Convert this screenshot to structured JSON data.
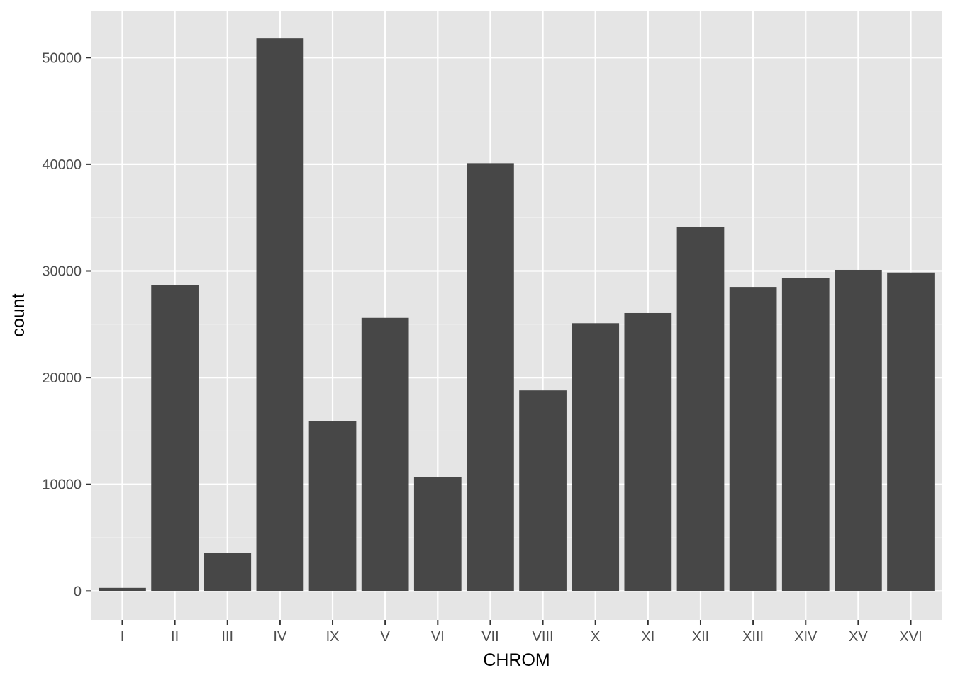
{
  "chart_data": {
    "type": "bar",
    "title": "",
    "xlabel": "CHROM",
    "ylabel": "count",
    "categories": [
      "I",
      "II",
      "III",
      "IV",
      "IX",
      "V",
      "VI",
      "VII",
      "VIII",
      "X",
      "XI",
      "XII",
      "XIII",
      "XIV",
      "XV",
      "XVI"
    ],
    "values": [
      300,
      28700,
      3600,
      51800,
      15900,
      25600,
      10650,
      40100,
      18800,
      25100,
      26050,
      34150,
      28500,
      29350,
      30100,
      29850
    ],
    "ylim": [
      -2700,
      54400
    ],
    "y_ticks": [
      0,
      10000,
      20000,
      30000,
      40000,
      50000
    ],
    "y_tick_labels": [
      "0",
      "10000",
      "20000",
      "30000",
      "40000",
      "50000"
    ],
    "grid": true,
    "legend": "none",
    "colors": {
      "bar": "#474747",
      "panel_background": "#e5e5e5",
      "grid_major": "#ffffff",
      "grid_minor": "#f2f2f2",
      "tick": "#333333"
    }
  }
}
